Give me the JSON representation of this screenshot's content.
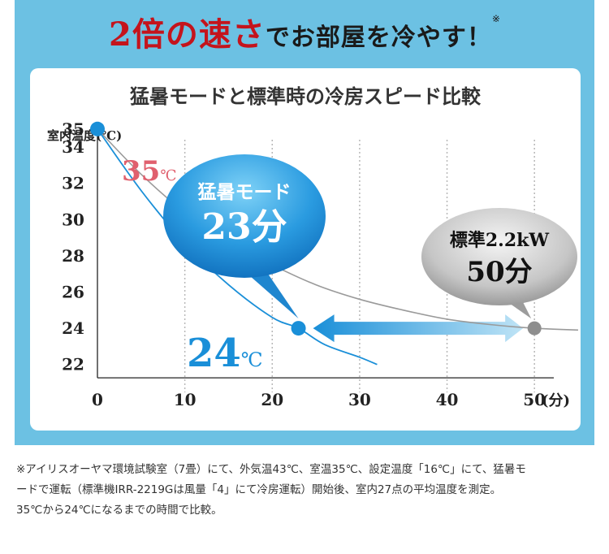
{
  "headline": {
    "emphasis": "2倍の速さ",
    "rest": "でお部屋を冷やす！",
    "note_mark": "※"
  },
  "chart_data": {
    "type": "line",
    "title": "猛暑モードと標準時の冷房スピード比較",
    "ylabel": "室内温度(℃)",
    "xlabel": "(分)",
    "xlim": [
      0,
      55
    ],
    "ylim": [
      21,
      36
    ],
    "x_ticks": [
      0,
      10,
      20,
      30,
      40,
      50
    ],
    "y_ticks": [
      22,
      24,
      26,
      28,
      30,
      32,
      34,
      35
    ],
    "x_grid": [
      10,
      20,
      30,
      40,
      50
    ],
    "series": [
      {
        "name": "猛暑モード",
        "color": "#1a8fd8",
        "x": [
          0,
          5,
          10,
          15,
          20,
          23,
          26,
          30,
          32
        ],
        "y": [
          35,
          31.6,
          28.7,
          26.4,
          24.6,
          24,
          23.1,
          22.4,
          22
        ]
      },
      {
        "name": "標準2.2kW",
        "color": "#9a9a9a",
        "x": [
          0,
          5,
          10,
          15,
          20,
          25,
          30,
          35,
          40,
          45,
          50,
          55
        ],
        "y": [
          35,
          32.5,
          30.4,
          28.8,
          27.5,
          26.4,
          25.6,
          25,
          24.5,
          24.2,
          24,
          23.9
        ]
      }
    ],
    "start_label": "35",
    "start_unit": "℃",
    "end_label": "24",
    "end_unit": "℃",
    "callout_turbo": {
      "label": "猛暑モード",
      "value": "23分"
    },
    "callout_standard": {
      "label": "標準2.2kW",
      "value": "50分"
    },
    "marker_start": {
      "x": 0,
      "y": 35
    },
    "marker_turbo": {
      "x": 23,
      "y": 24
    },
    "marker_standard": {
      "x": 50,
      "y": 24
    }
  },
  "footnote": {
    "line1": "※アイリスオーヤマ環境試験室（7畳）にて、外気温43℃、室温35℃、設定温度「16℃」にて、猛暑モ",
    "line2": "ードで運転（標準機IRR-2219Gは風量「4」にて冷房運転）開始後、室内27点の平均温度を測定。",
    "line3": "35℃から24℃になるまでの時間で比較。"
  },
  "colors": {
    "panel": "#6cc1e3",
    "headline_red": "#c4141c",
    "turbo_blue": "#1a8fd8",
    "standard_gray": "#9a9a9a",
    "start_red": "#e0606e"
  }
}
